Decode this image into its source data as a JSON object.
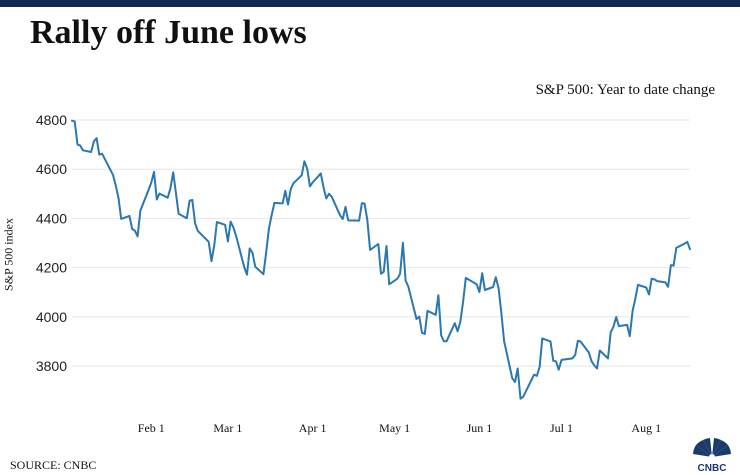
{
  "header": {
    "title": "Rally off June lows"
  },
  "chart_data": {
    "type": "line",
    "title": "Rally off June lows",
    "subtitle": "S&P 500: Year to date change",
    "xlabel": "",
    "ylabel": "S&P 500 index",
    "ylim": [
      3640,
      4820
    ],
    "y_ticks": [
      3800,
      4000,
      4200,
      4400,
      4600,
      4800
    ],
    "x_ticks": [
      {
        "label": "Feb 1",
        "date": "2022-02-01"
      },
      {
        "label": "Mar 1",
        "date": "2022-03-01"
      },
      {
        "label": "Apr 1",
        "date": "2022-04-01"
      },
      {
        "label": "May 1",
        "date": "2022-05-01"
      },
      {
        "label": "Jun 1",
        "date": "2022-06-01"
      },
      {
        "label": "Jul 1",
        "date": "2022-07-01"
      },
      {
        "label": "Aug 1",
        "date": "2022-08-01"
      }
    ],
    "grid": true,
    "series": [
      {
        "color": "#2b77b0",
        "points": [
          [
            "2022-01-03",
            4797
          ],
          [
            "2022-01-04",
            4794
          ],
          [
            "2022-01-05",
            4701
          ],
          [
            "2022-01-06",
            4696
          ],
          [
            "2022-01-07",
            4677
          ],
          [
            "2022-01-10",
            4670
          ],
          [
            "2022-01-11",
            4713
          ],
          [
            "2022-01-12",
            4726
          ],
          [
            "2022-01-13",
            4659
          ],
          [
            "2022-01-14",
            4663
          ],
          [
            "2022-01-18",
            4577
          ],
          [
            "2022-01-19",
            4533
          ],
          [
            "2022-01-20",
            4483
          ],
          [
            "2022-01-21",
            4398
          ],
          [
            "2022-01-24",
            4410
          ],
          [
            "2022-01-25",
            4357
          ],
          [
            "2022-01-26",
            4350
          ],
          [
            "2022-01-27",
            4327
          ],
          [
            "2022-01-28",
            4432
          ],
          [
            "2022-01-31",
            4516
          ],
          [
            "2022-02-01",
            4546
          ],
          [
            "2022-02-02",
            4589
          ],
          [
            "2022-02-03",
            4477
          ],
          [
            "2022-02-04",
            4501
          ],
          [
            "2022-02-07",
            4484
          ],
          [
            "2022-02-08",
            4522
          ],
          [
            "2022-02-09",
            4587
          ],
          [
            "2022-02-10",
            4504
          ],
          [
            "2022-02-11",
            4419
          ],
          [
            "2022-02-14",
            4401
          ],
          [
            "2022-02-15",
            4472
          ],
          [
            "2022-02-16",
            4475
          ],
          [
            "2022-02-17",
            4380
          ],
          [
            "2022-02-18",
            4349
          ],
          [
            "2022-02-22",
            4305
          ],
          [
            "2022-02-23",
            4226
          ],
          [
            "2022-02-24",
            4289
          ],
          [
            "2022-02-25",
            4385
          ],
          [
            "2022-02-28",
            4374
          ],
          [
            "2022-03-01",
            4306
          ],
          [
            "2022-03-02",
            4387
          ],
          [
            "2022-03-03",
            4364
          ],
          [
            "2022-03-04",
            4329
          ],
          [
            "2022-03-07",
            4201
          ],
          [
            "2022-03-08",
            4171
          ],
          [
            "2022-03-09",
            4278
          ],
          [
            "2022-03-10",
            4260
          ],
          [
            "2022-03-11",
            4204
          ],
          [
            "2022-03-14",
            4173
          ],
          [
            "2022-03-15",
            4262
          ],
          [
            "2022-03-16",
            4358
          ],
          [
            "2022-03-17",
            4412
          ],
          [
            "2022-03-18",
            4463
          ],
          [
            "2022-03-21",
            4461
          ],
          [
            "2022-03-22",
            4512
          ],
          [
            "2022-03-23",
            4456
          ],
          [
            "2022-03-24",
            4520
          ],
          [
            "2022-03-25",
            4543
          ],
          [
            "2022-03-28",
            4575
          ],
          [
            "2022-03-29",
            4632
          ],
          [
            "2022-03-30",
            4602
          ],
          [
            "2022-03-31",
            4530
          ],
          [
            "2022-04-01",
            4546
          ],
          [
            "2022-04-04",
            4583
          ],
          [
            "2022-04-05",
            4525
          ],
          [
            "2022-04-06",
            4481
          ],
          [
            "2022-04-07",
            4500
          ],
          [
            "2022-04-08",
            4488
          ],
          [
            "2022-04-11",
            4413
          ],
          [
            "2022-04-12",
            4397
          ],
          [
            "2022-04-13",
            4447
          ],
          [
            "2022-04-14",
            4392
          ],
          [
            "2022-04-18",
            4391
          ],
          [
            "2022-04-19",
            4462
          ],
          [
            "2022-04-20",
            4460
          ],
          [
            "2022-04-21",
            4394
          ],
          [
            "2022-04-22",
            4272
          ],
          [
            "2022-04-25",
            4296
          ],
          [
            "2022-04-26",
            4175
          ],
          [
            "2022-04-27",
            4183
          ],
          [
            "2022-04-28",
            4288
          ],
          [
            "2022-04-29",
            4132
          ],
          [
            "2022-05-02",
            4155
          ],
          [
            "2022-05-03",
            4175
          ],
          [
            "2022-05-04",
            4301
          ],
          [
            "2022-05-05",
            4147
          ],
          [
            "2022-05-06",
            4123
          ],
          [
            "2022-05-09",
            3991
          ],
          [
            "2022-05-10",
            4001
          ],
          [
            "2022-05-11",
            3935
          ],
          [
            "2022-05-12",
            3930
          ],
          [
            "2022-05-13",
            4024
          ],
          [
            "2022-05-16",
            4008
          ],
          [
            "2022-05-17",
            4088
          ],
          [
            "2022-05-18",
            3924
          ],
          [
            "2022-05-19",
            3901
          ],
          [
            "2022-05-20",
            3901
          ],
          [
            "2022-05-23",
            3974
          ],
          [
            "2022-05-24",
            3941
          ],
          [
            "2022-05-25",
            3979
          ],
          [
            "2022-05-26",
            4058
          ],
          [
            "2022-05-27",
            4158
          ],
          [
            "2022-05-31",
            4132
          ],
          [
            "2022-06-01",
            4101
          ],
          [
            "2022-06-02",
            4177
          ],
          [
            "2022-06-03",
            4109
          ],
          [
            "2022-06-06",
            4121
          ],
          [
            "2022-06-07",
            4161
          ],
          [
            "2022-06-08",
            4116
          ],
          [
            "2022-06-09",
            4018
          ],
          [
            "2022-06-10",
            3901
          ],
          [
            "2022-06-13",
            3750
          ],
          [
            "2022-06-14",
            3735
          ],
          [
            "2022-06-15",
            3790
          ],
          [
            "2022-06-16",
            3667
          ],
          [
            "2022-06-17",
            3675
          ],
          [
            "2022-06-21",
            3765
          ],
          [
            "2022-06-22",
            3760
          ],
          [
            "2022-06-23",
            3796
          ],
          [
            "2022-06-24",
            3912
          ],
          [
            "2022-06-27",
            3900
          ],
          [
            "2022-06-28",
            3821
          ],
          [
            "2022-06-29",
            3819
          ],
          [
            "2022-06-30",
            3785
          ],
          [
            "2022-07-01",
            3825
          ],
          [
            "2022-07-05",
            3831
          ],
          [
            "2022-07-06",
            3845
          ],
          [
            "2022-07-07",
            3903
          ],
          [
            "2022-07-08",
            3899
          ],
          [
            "2022-07-11",
            3855
          ],
          [
            "2022-07-12",
            3819
          ],
          [
            "2022-07-13",
            3802
          ],
          [
            "2022-07-14",
            3790
          ],
          [
            "2022-07-15",
            3863
          ],
          [
            "2022-07-18",
            3831
          ],
          [
            "2022-07-19",
            3937
          ],
          [
            "2022-07-20",
            3959
          ],
          [
            "2022-07-21",
            3999
          ],
          [
            "2022-07-22",
            3962
          ],
          [
            "2022-07-25",
            3967
          ],
          [
            "2022-07-26",
            3921
          ],
          [
            "2022-07-27",
            4024
          ],
          [
            "2022-07-28",
            4073
          ],
          [
            "2022-07-29",
            4130
          ],
          [
            "2022-08-01",
            4119
          ],
          [
            "2022-08-02",
            4091
          ],
          [
            "2022-08-03",
            4155
          ],
          [
            "2022-08-04",
            4152
          ],
          [
            "2022-08-05",
            4145
          ],
          [
            "2022-08-08",
            4140
          ],
          [
            "2022-08-09",
            4122
          ],
          [
            "2022-08-10",
            4210
          ],
          [
            "2022-08-11",
            4208
          ],
          [
            "2022-08-12",
            4280
          ],
          [
            "2022-08-15",
            4297
          ],
          [
            "2022-08-16",
            4305
          ],
          [
            "2022-08-17",
            4275
          ]
        ]
      }
    ]
  },
  "footer": {
    "source": "SOURCE: CNBC"
  },
  "colors": {
    "top_bar": "#0f2a52",
    "line": "#2b77b0",
    "grid": "#e6e6e6"
  },
  "logo": {
    "name": "cnbc-peacock-logo",
    "text": "CNBC"
  }
}
